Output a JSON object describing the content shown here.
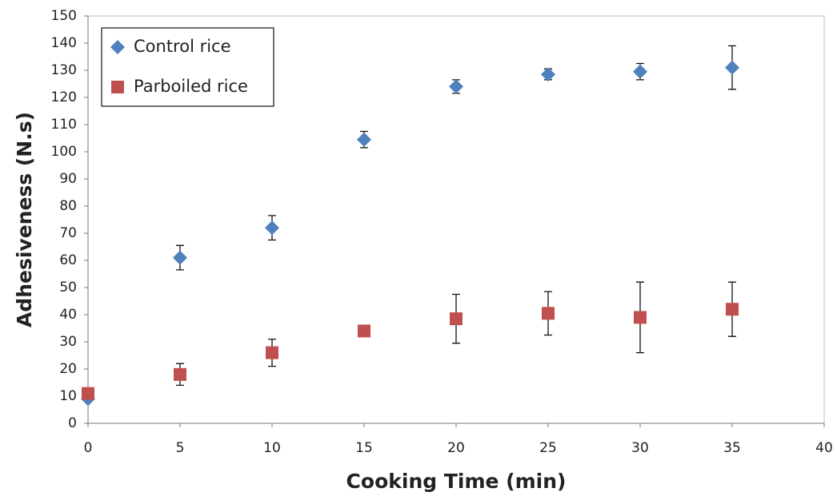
{
  "chart_data": {
    "type": "scatter",
    "xlabel": "Cooking Time (min)",
    "ylabel": "Adhesiveness (N.s)",
    "xlim": [
      0,
      40
    ],
    "xticks": [
      0,
      5,
      10,
      15,
      20,
      25,
      30,
      35,
      40
    ],
    "ylim": [
      0,
      150
    ],
    "yticks": [
      0,
      10,
      20,
      30,
      40,
      50,
      60,
      70,
      80,
      90,
      100,
      110,
      120,
      130,
      140,
      150
    ],
    "legend": "upper left",
    "series": [
      {
        "name": "Control rice",
        "color": "#4f81bd",
        "marker": "diamond",
        "x": [
          0,
          5,
          10,
          15,
          20,
          25,
          30,
          35
        ],
        "values": [
          9,
          61,
          72,
          104.5,
          124,
          128.5,
          129.5,
          131
        ],
        "errors": [
          1,
          4.5,
          4.5,
          3,
          2.5,
          2,
          3,
          8
        ]
      },
      {
        "name": "Parboiled rice",
        "color": "#c0504d",
        "marker": "square",
        "x": [
          0,
          5,
          10,
          15,
          20,
          25,
          30,
          35
        ],
        "values": [
          11,
          18,
          26,
          34,
          38.5,
          40.5,
          39,
          42
        ],
        "errors": [
          1,
          4,
          5,
          1,
          9,
          8,
          13,
          10
        ]
      }
    ]
  }
}
